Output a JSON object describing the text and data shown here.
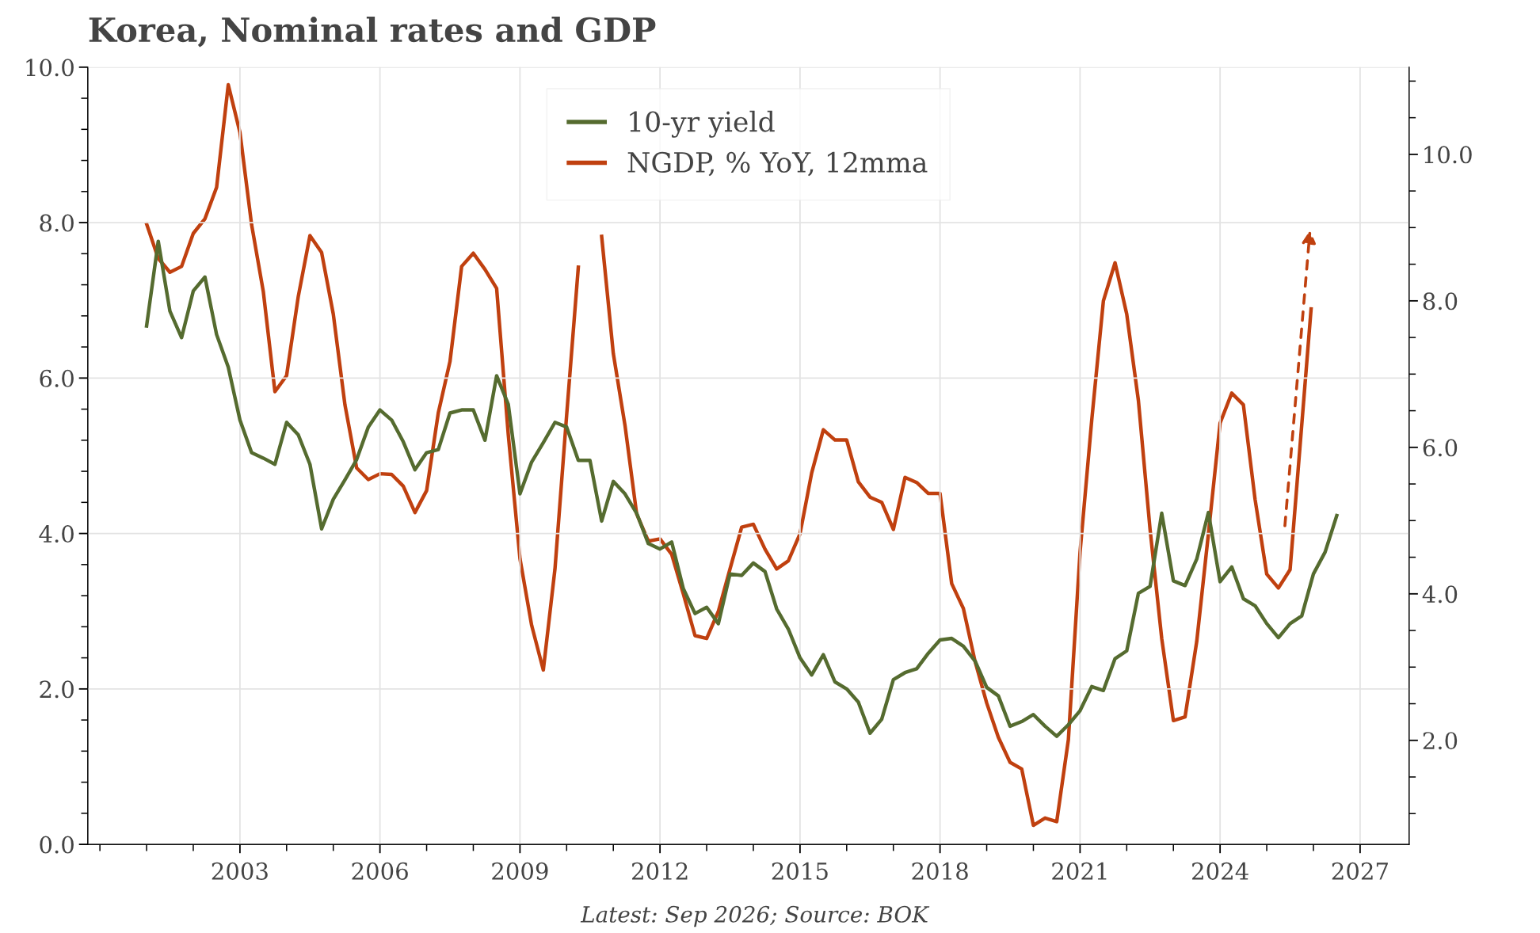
{
  "chart_data": {
    "type": "line",
    "title": "Korea, Nominal rates and GDP",
    "annotations": [
      "Latest: Sep 2026; Source: BOK"
    ],
    "xlim": [
      1999.74,
      2028.05
    ],
    "xticks": [
      {
        "value": 2000,
        "label": null
      },
      {
        "value": 2001,
        "label": null
      },
      {
        "value": 2002,
        "label": null
      },
      2003,
      {
        "value": 2004,
        "label": null
      },
      {
        "value": 2005,
        "label": null
      },
      2006,
      {
        "value": 2007,
        "label": null
      },
      {
        "value": 2008,
        "label": null
      },
      2009,
      {
        "value": 2010,
        "label": null
      },
      {
        "value": 2011,
        "label": null
      },
      2012,
      {
        "value": 2013,
        "label": null
      },
      {
        "value": 2014,
        "label": null
      },
      2015,
      {
        "value": 2016,
        "label": null
      },
      {
        "value": 2017,
        "label": null
      },
      2018,
      {
        "value": 2019,
        "label": null
      },
      {
        "value": 2020,
        "label": null
      },
      2021,
      {
        "value": 2022,
        "label": null
      },
      {
        "value": 2023,
        "label": null
      },
      2024,
      {
        "value": 2025,
        "label": null
      },
      {
        "value": 2026,
        "label": null
      },
      2027
    ],
    "ylim": [
      0,
      10
    ],
    "yticks": [
      {
        "value": 0,
        "label": "0.0"
      },
      {
        "value": 0.4,
        "label": null
      },
      {
        "value": 0.8,
        "label": null
      },
      {
        "value": 1.2,
        "label": null
      },
      {
        "value": 1.6,
        "label": null
      },
      {
        "value": 2,
        "label": "2.0"
      },
      {
        "value": 2.4,
        "label": null
      },
      {
        "value": 2.8,
        "label": null
      },
      {
        "value": 3.2,
        "label": null
      },
      {
        "value": 3.6,
        "label": null
      },
      {
        "value": 4,
        "label": "4.0"
      },
      {
        "value": 4.4,
        "label": null
      },
      {
        "value": 4.8,
        "label": null
      },
      {
        "value": 5.2,
        "label": null
      },
      {
        "value": 5.6,
        "label": null
      },
      {
        "value": 6,
        "label": "6.0"
      },
      {
        "value": 6.4,
        "label": null
      },
      {
        "value": 6.8,
        "label": null
      },
      {
        "value": 7.2,
        "label": null
      },
      {
        "value": 7.6,
        "label": null
      },
      {
        "value": 8,
        "label": "8.0"
      },
      {
        "value": 8.4,
        "label": null
      },
      {
        "value": 8.8,
        "label": null
      },
      {
        "value": 9.2,
        "label": null
      },
      {
        "value": 9.6,
        "label": null
      },
      {
        "value": 10,
        "label": "10.0"
      }
    ],
    "y2lim": [
      0.58,
      11.19
    ],
    "y2ticks": [
      {
        "value": 1,
        "label": null
      },
      {
        "value": 1.5,
        "label": null
      },
      {
        "value": 2,
        "label": "2.0"
      },
      {
        "value": 2.5,
        "label": null
      },
      {
        "value": 3,
        "label": null
      },
      {
        "value": 3.5,
        "label": null
      },
      {
        "value": 4,
        "label": "4.0"
      },
      {
        "value": 4.5,
        "label": null
      },
      {
        "value": 5,
        "label": null
      },
      {
        "value": 5.5,
        "label": null
      },
      {
        "value": 6,
        "label": "6.0"
      },
      {
        "value": 6.5,
        "label": null
      },
      {
        "value": 7,
        "label": null
      },
      {
        "value": 7.5,
        "label": null
      },
      {
        "value": 8,
        "label": "8.0"
      },
      {
        "value": 8.5,
        "label": null
      },
      {
        "value": 9,
        "label": null
      },
      {
        "value": 9.5,
        "label": null
      },
      {
        "value": 10,
        "label": "10.0"
      },
      {
        "value": 10.5,
        "label": null
      },
      {
        "value": 11,
        "label": null
      }
    ],
    "grid": true,
    "legend": "top",
    "marker": "none",
    "line_style": "solid",
    "series": [
      {
        "name": "10-yr yield",
        "color": "#556b2f",
        "x": [
          2001.0,
          2001.25,
          2001.5,
          2001.75,
          2002.0,
          2002.25,
          2002.5,
          2002.75,
          2003.0,
          2003.25,
          2003.5,
          2003.75,
          2004.0,
          2004.25,
          2004.5,
          2004.75,
          2005.0,
          2005.25,
          2005.5,
          2005.75,
          2006.0,
          2006.25,
          2006.5,
          2006.75,
          2007.0,
          2007.25,
          2007.5,
          2007.75,
          2008.0,
          2008.25,
          2008.5,
          2008.75,
          2009.0,
          2009.25,
          2009.5,
          2009.75,
          2010.0,
          2010.25,
          2010.5,
          2010.75,
          2011.0,
          2011.25,
          2011.5,
          2011.75,
          2012.0,
          2012.25,
          2012.5,
          2012.75,
          2013.0,
          2013.25,
          2013.5,
          2013.75,
          2014.0,
          2014.25,
          2014.5,
          2014.75,
          2015.0,
          2015.25,
          2015.5,
          2015.75,
          2016.0,
          2016.25,
          2016.5,
          2016.75,
          2017.0,
          2017.25,
          2017.5,
          2017.75,
          2018.0,
          2018.25,
          2018.5,
          2018.75,
          2019.0,
          2019.25,
          2019.5,
          2019.75,
          2020.0,
          2020.25,
          2020.5,
          2020.75,
          2021.0,
          2021.25,
          2021.5,
          2021.75,
          2022.0,
          2022.25,
          2022.5,
          2022.75,
          2023.0,
          2023.25,
          2023.5,
          2023.75,
          2024.0,
          2024.25,
          2024.5,
          2024.75,
          2025.0,
          2025.25,
          2025.5,
          2025.75,
          2026.0,
          2026.25,
          2026.5
        ],
        "values": [
          6.67,
          7.76,
          6.86,
          6.52,
          7.12,
          7.3,
          6.56,
          6.14,
          5.46,
          5.04,
          4.97,
          4.89,
          5.43,
          5.27,
          4.89,
          4.06,
          4.44,
          4.69,
          4.95,
          5.37,
          5.59,
          5.46,
          5.18,
          4.82,
          5.04,
          5.08,
          5.55,
          5.59,
          5.59,
          5.2,
          6.03,
          5.66,
          4.51,
          4.92,
          5.17,
          5.43,
          5.37,
          4.94,
          4.94,
          4.16,
          4.67,
          4.51,
          4.26,
          3.87,
          3.8,
          3.89,
          3.29,
          2.97,
          3.05,
          2.84,
          3.48,
          3.46,
          3.62,
          3.51,
          3.03,
          2.77,
          2.4,
          2.18,
          2.44,
          2.09,
          2.0,
          1.83,
          1.43,
          1.61,
          2.12,
          2.21,
          2.26,
          2.46,
          2.63,
          2.65,
          2.55,
          2.36,
          2.02,
          1.91,
          1.52,
          1.58,
          1.67,
          1.52,
          1.39,
          1.54,
          1.72,
          2.03,
          1.98,
          2.39,
          2.49,
          3.23,
          3.32,
          4.26,
          3.39,
          3.33,
          3.67,
          4.27,
          3.38,
          3.57,
          3.16,
          3.07,
          2.84,
          2.66,
          2.84,
          2.94,
          3.48,
          3.76,
          4.23
        ]
      },
      {
        "name": "NGDP, % YoY, 12mma",
        "color": "#c0400f",
        "axis": "y2",
        "x": [
          2001.0,
          2001.25,
          2001.5,
          2001.75,
          2002.0,
          2002.25,
          2002.5,
          2002.75,
          2003.0,
          2003.25,
          2003.5,
          2003.75,
          2004.0,
          2004.25,
          2004.5,
          2004.75,
          2005.0,
          2005.25,
          2005.5,
          2005.75,
          2006.0,
          2006.25,
          2006.5,
          2006.75,
          2007.0,
          2007.25,
          2007.5,
          2007.75,
          2008.0,
          2008.25,
          2008.5,
          2008.75,
          2009.0,
          2009.25,
          2009.5,
          2009.75,
          2010.0,
          2010.25,
          2010.5,
          2010.75,
          2011.0,
          2011.25,
          2011.5,
          2011.75,
          2012.0,
          2012.25,
          2012.5,
          2012.75,
          2013.0,
          2013.25,
          2013.5,
          2013.75,
          2014.0,
          2014.25,
          2014.5,
          2014.75,
          2015.0,
          2015.25,
          2015.5,
          2015.75,
          2016.0,
          2016.25,
          2016.5,
          2016.75,
          2017.0,
          2017.25,
          2017.5,
          2017.75,
          2018.0,
          2018.25,
          2018.5,
          2018.75,
          2019.0,
          2019.25,
          2019.5,
          2019.75,
          2020.0,
          2020.25,
          2020.5,
          2020.75,
          2021.0,
          2021.25,
          2021.5,
          2021.75,
          2022.0,
          2022.25,
          2022.5,
          2022.75,
          2023.0,
          2023.25,
          2023.5,
          2023.75,
          2024.0,
          2024.25,
          2024.5,
          2024.75,
          2025.0,
          2025.25,
          2025.5,
          2025.95
        ],
        "values": [
          9.05,
          8.58,
          8.39,
          8.47,
          8.92,
          9.12,
          9.55,
          10.95,
          10.3,
          9.04,
          8.13,
          6.76,
          6.98,
          8.06,
          8.89,
          8.66,
          7.82,
          6.58,
          5.72,
          5.56,
          5.64,
          5.63,
          5.47,
          5.11,
          5.41,
          6.47,
          7.17,
          8.47,
          8.65,
          8.43,
          8.17,
          6.17,
          4.48,
          3.57,
          2.96,
          4.34,
          6.44,
          8.46,
          null,
          8.88,
          7.28,
          6.3,
          5.09,
          4.72,
          4.75,
          4.54,
          4.0,
          3.43,
          3.39,
          3.76,
          4.34,
          4.91,
          4.95,
          4.61,
          4.34,
          4.45,
          4.82,
          5.65,
          6.24,
          6.1,
          6.1,
          5.53,
          5.32,
          5.25,
          4.88,
          5.59,
          5.52,
          5.37,
          5.37,
          4.14,
          3.8,
          3.08,
          2.51,
          2.04,
          1.7,
          1.61,
          0.84,
          0.94,
          0.89,
          2.01,
          4.57,
          6.37,
          8.0,
          8.52,
          7.82,
          6.64,
          4.88,
          3.39,
          2.27,
          2.32,
          3.35,
          4.82,
          6.33,
          6.74,
          6.58,
          5.29,
          4.27,
          4.08,
          4.33,
          7.89
        ]
      }
    ]
  }
}
